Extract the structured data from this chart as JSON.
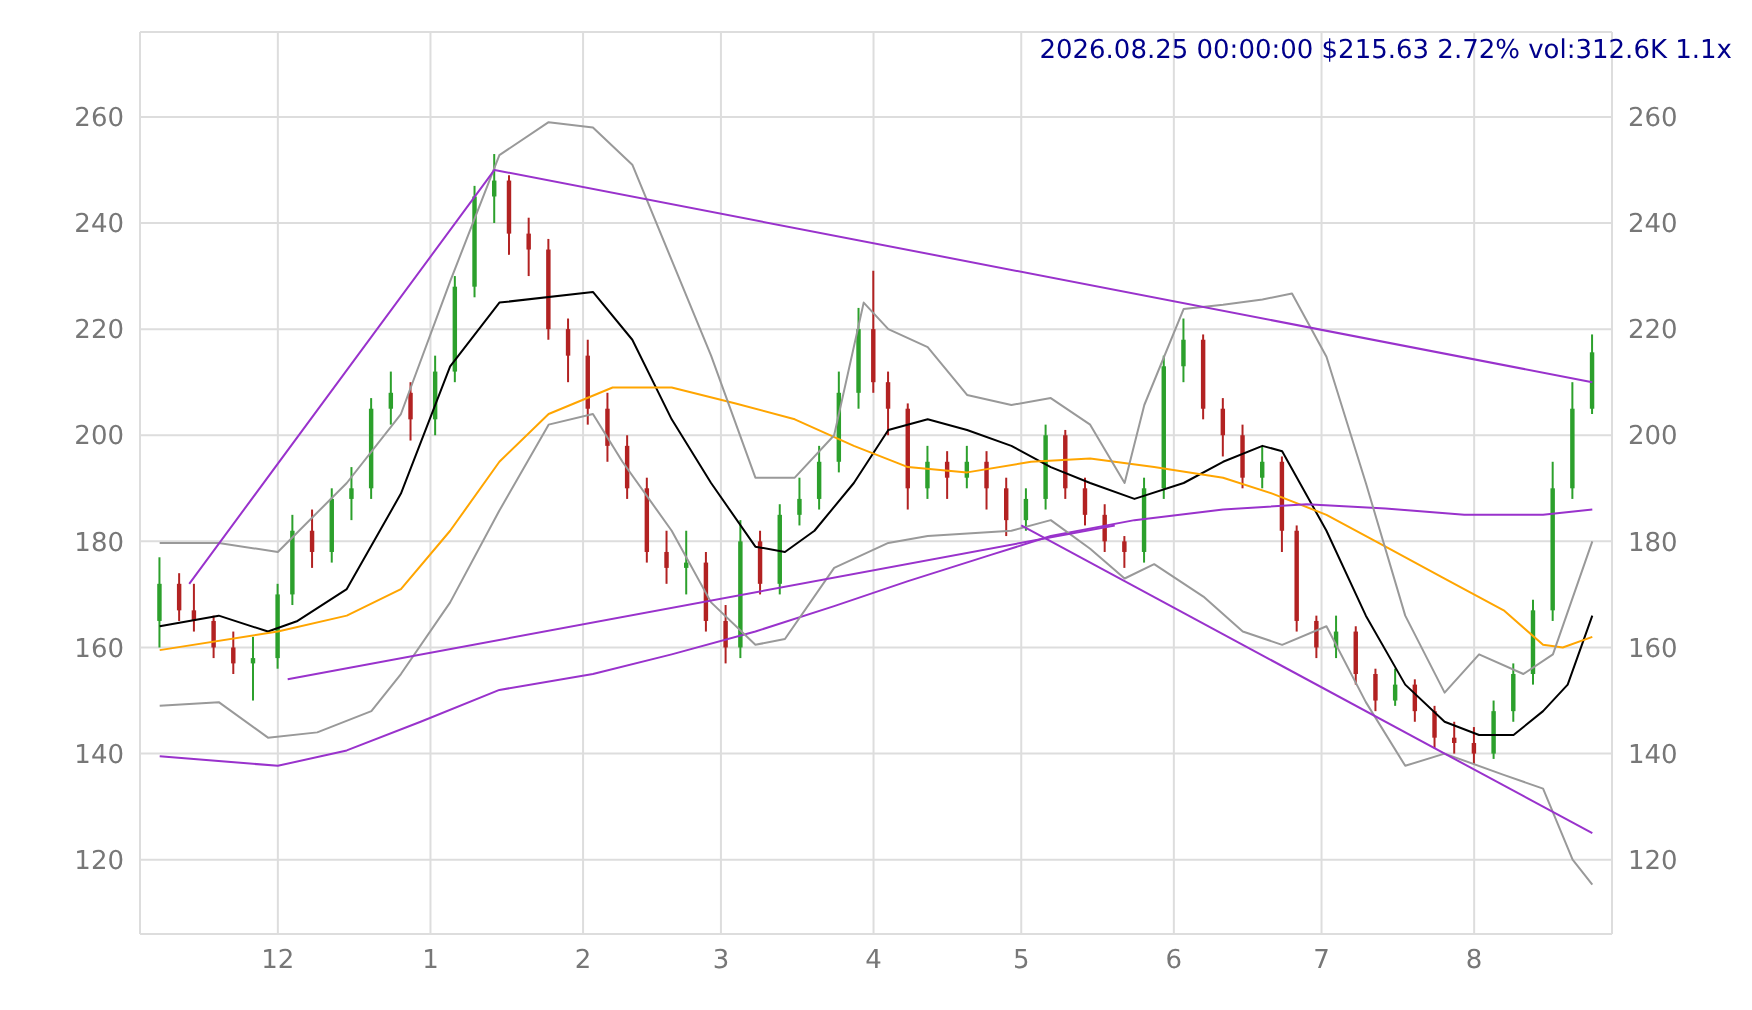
{
  "chart_data": {
    "type": "candlestick",
    "annotations": [
      "2026.08.25 00:00:00 $215.63 2.72% vol:312.6K 1.1x"
    ],
    "x": [
      "2025-11-07",
      "2025-11-11",
      "2025-11-14",
      "2025-11-18",
      "2025-11-22",
      "2025-11-26",
      "2025-12-01",
      "2025-12-04",
      "2025-12-08",
      "2025-12-12",
      "2025-12-16",
      "2025-12-20",
      "2025-12-24",
      "2025-12-28",
      "2026-01-02",
      "2026-01-06",
      "2026-01-10",
      "2026-01-14",
      "2026-01-17",
      "2026-01-21",
      "2026-01-25",
      "2026-01-29",
      "2026-02-02",
      "2026-02-06",
      "2026-02-10",
      "2026-02-14",
      "2026-02-18",
      "2026-02-22",
      "2026-02-26",
      "2026-03-02",
      "2026-03-05",
      "2026-03-09",
      "2026-03-13",
      "2026-03-17",
      "2026-03-21",
      "2026-03-25",
      "2026-03-29",
      "2026-04-01",
      "2026-04-04",
      "2026-04-08",
      "2026-04-12",
      "2026-04-16",
      "2026-04-20",
      "2026-04-24",
      "2026-04-28",
      "2026-05-02",
      "2026-05-06",
      "2026-05-10",
      "2026-05-14",
      "2026-05-18",
      "2026-05-22",
      "2026-05-26",
      "2026-05-30",
      "2026-06-03",
      "2026-06-07",
      "2026-06-11",
      "2026-06-15",
      "2026-06-19",
      "2026-06-23",
      "2026-06-26",
      "2026-06-30",
      "2026-07-04",
      "2026-07-08",
      "2026-07-12",
      "2026-07-16",
      "2026-07-20",
      "2026-07-24",
      "2026-07-28",
      "2026-08-01",
      "2026-08-05",
      "2026-08-09",
      "2026-08-13",
      "2026-08-17",
      "2026-08-21",
      "2026-08-25"
    ],
    "ohlc": [
      [
        165,
        177,
        160,
        172
      ],
      [
        172,
        174,
        165,
        167
      ],
      [
        167,
        172,
        163,
        165
      ],
      [
        165,
        166,
        158,
        160
      ],
      [
        160,
        163,
        155,
        157
      ],
      [
        157,
        162,
        150,
        158
      ],
      [
        158,
        172,
        156,
        170
      ],
      [
        170,
        185,
        168,
        182
      ],
      [
        182,
        186,
        175,
        178
      ],
      [
        178,
        190,
        176,
        188
      ],
      [
        188,
        194,
        184,
        190
      ],
      [
        190,
        207,
        188,
        205
      ],
      [
        205,
        212,
        202,
        208
      ],
      [
        208,
        210,
        199,
        203
      ],
      [
        203,
        215,
        200,
        212
      ],
      [
        212,
        230,
        210,
        228
      ],
      [
        228,
        247,
        226,
        245
      ],
      [
        245,
        253,
        240,
        248
      ],
      [
        248,
        249,
        234,
        238
      ],
      [
        238,
        241,
        230,
        235
      ],
      [
        235,
        237,
        218,
        220
      ],
      [
        220,
        222,
        210,
        215
      ],
      [
        215,
        218,
        202,
        205
      ],
      [
        205,
        208,
        195,
        198
      ],
      [
        198,
        200,
        188,
        190
      ],
      [
        190,
        192,
        176,
        178
      ],
      [
        178,
        182,
        172,
        175
      ],
      [
        175,
        182,
        170,
        176
      ],
      [
        176,
        178,
        163,
        165
      ],
      [
        165,
        168,
        157,
        160
      ],
      [
        160,
        184,
        158,
        180
      ],
      [
        180,
        182,
        170,
        172
      ],
      [
        172,
        187,
        170,
        185
      ],
      [
        185,
        192,
        183,
        188
      ],
      [
        188,
        198,
        186,
        195
      ],
      [
        195,
        212,
        193,
        208
      ],
      [
        208,
        224,
        205,
        220
      ],
      [
        220,
        231,
        208,
        210
      ],
      [
        210,
        212,
        200,
        205
      ],
      [
        205,
        206,
        186,
        190
      ],
      [
        190,
        198,
        188,
        195
      ],
      [
        195,
        197,
        188,
        192
      ],
      [
        192,
        198,
        190,
        195
      ],
      [
        195,
        197,
        186,
        190
      ],
      [
        190,
        192,
        181,
        184
      ],
      [
        184,
        190,
        182,
        188
      ],
      [
        188,
        202,
        186,
        200
      ],
      [
        200,
        201,
        188,
        190
      ],
      [
        190,
        192,
        183,
        185
      ],
      [
        185,
        187,
        178,
        180
      ],
      [
        180,
        181,
        175,
        178
      ],
      [
        178,
        192,
        176,
        190
      ],
      [
        190,
        215,
        188,
        213
      ],
      [
        213,
        222,
        210,
        218
      ],
      [
        218,
        219,
        203,
        205
      ],
      [
        205,
        207,
        196,
        200
      ],
      [
        200,
        202,
        190,
        192
      ],
      [
        192,
        198,
        190,
        195
      ],
      [
        195,
        196,
        178,
        182
      ],
      [
        182,
        183,
        163,
        165
      ],
      [
        165,
        166,
        158,
        160
      ],
      [
        160,
        166,
        158,
        163
      ],
      [
        163,
        164,
        153,
        155
      ],
      [
        155,
        156,
        148,
        150
      ],
      [
        150,
        156,
        149,
        153
      ],
      [
        153,
        154,
        146,
        148
      ],
      [
        148,
        149,
        141,
        143
      ],
      [
        143,
        146,
        140,
        142
      ],
      [
        142,
        145,
        138,
        140
      ],
      [
        140,
        150,
        139,
        148
      ],
      [
        148,
        157,
        146,
        155
      ],
      [
        155,
        169,
        153,
        167
      ],
      [
        167,
        195,
        165,
        190
      ],
      [
        190,
        210,
        188,
        205
      ],
      [
        205,
        219,
        204,
        215.63
      ]
    ],
    "colors": [
      "#2ca02c",
      "#b22222",
      "#b22222",
      "#b22222",
      "#b22222",
      "#2ca02c",
      "#2ca02c",
      "#2ca02c",
      "#b22222",
      "#2ca02c",
      "#2ca02c",
      "#2ca02c",
      "#2ca02c",
      "#b22222",
      "#2ca02c",
      "#2ca02c",
      "#2ca02c",
      "#2ca02c",
      "#b22222",
      "#b22222",
      "#b22222",
      "#b22222",
      "#b22222",
      "#b22222",
      "#b22222",
      "#b22222",
      "#b22222",
      "#2ca02c",
      "#b22222",
      "#b22222",
      "#2ca02c",
      "#b22222",
      "#2ca02c",
      "#2ca02c",
      "#2ca02c",
      "#2ca02c",
      "#2ca02c",
      "#b22222",
      "#b22222",
      "#b22222",
      "#2ca02c",
      "#b22222",
      "#2ca02c",
      "#b22222",
      "#b22222",
      "#2ca02c",
      "#2ca02c",
      "#b22222",
      "#b22222",
      "#b22222",
      "#b22222",
      "#2ca02c",
      "#2ca02c",
      "#2ca02c",
      "#b22222",
      "#b22222",
      "#b22222",
      "#2ca02c",
      "#b22222",
      "#b22222",
      "#b22222",
      "#2ca02c",
      "#b22222",
      "#b22222",
      "#2ca02c",
      "#b22222",
      "#b22222",
      "#b22222",
      "#b22222",
      "#2ca02c",
      "#2ca02c",
      "#2ca02c",
      "#2ca02c",
      "#2ca02c",
      "#2ca02c"
    ],
    "series": [
      {
        "type": "line",
        "color": "#000000",
        "x": [
          "2025-11-07",
          "2025-11-19",
          "2025-11-29",
          "2025-12-05",
          "2025-12-15",
          "2025-12-26",
          "2026-01-05",
          "2026-01-15",
          "2026-02-03",
          "2026-02-11",
          "2026-02-19",
          "2026-02-27",
          "2026-03-08",
          "2026-03-14",
          "2026-03-20",
          "2026-03-28",
          "2026-04-04",
          "2026-04-12",
          "2026-04-20",
          "2026-04-29",
          "2026-05-07",
          "2026-05-15",
          "2026-05-24",
          "2026-06-03",
          "2026-06-11",
          "2026-06-19",
          "2026-06-23",
          "2026-07-02",
          "2026-07-10",
          "2026-07-18",
          "2026-07-26",
          "2026-08-02",
          "2026-08-09",
          "2026-08-15",
          "2026-08-20",
          "2026-08-25"
        ],
        "values": [
          164,
          166,
          163,
          165,
          171,
          189,
          213,
          225,
          227,
          218,
          203,
          191,
          179,
          178,
          182,
          191,
          201,
          203,
          201,
          198,
          194,
          191,
          188,
          191,
          195,
          198,
          197,
          182,
          166,
          153,
          146,
          143.5,
          143.5,
          148,
          153,
          166
        ]
      },
      {
        "type": "line",
        "color": "#ffa500",
        "x": [
          "2025-11-07",
          "2025-12-01",
          "2025-12-15",
          "2025-12-26",
          "2026-01-05",
          "2026-01-15",
          "2026-01-25",
          "2026-02-07",
          "2026-02-19",
          "2026-03-04",
          "2026-03-16",
          "2026-03-28",
          "2026-04-08",
          "2026-04-20",
          "2026-05-03",
          "2026-05-15",
          "2026-05-28",
          "2026-06-11",
          "2026-06-21",
          "2026-07-02",
          "2026-07-14",
          "2026-07-26",
          "2026-08-07",
          "2026-08-15",
          "2026-08-19",
          "2026-08-25"
        ],
        "values": [
          159.5,
          163,
          166,
          171,
          182,
          195,
          204,
          209,
          209,
          206,
          203,
          198,
          194,
          193,
          195,
          195.6,
          194,
          192,
          189,
          185,
          179,
          173,
          167,
          160.5,
          160,
          162
        ]
      },
      {
        "type": "line",
        "color": "#9932cc",
        "x": [
          "2025-11-07",
          "2025-12-01",
          "2025-12-15",
          "2025-12-30",
          "2026-01-15",
          "2026-02-03",
          "2026-02-19",
          "2026-03-08",
          "2026-03-24",
          "2026-04-08",
          "2026-04-25",
          "2026-05-07",
          "2026-05-24",
          "2026-06-11",
          "2026-06-28",
          "2026-07-14",
          "2026-07-30",
          "2026-08-15",
          "2026-08-25"
        ],
        "values": [
          139.5,
          137.7,
          140.6,
          146,
          152,
          155,
          158.7,
          163,
          167.8,
          172.5,
          177.5,
          181,
          184,
          186,
          187,
          186.2,
          185,
          185,
          186
        ]
      },
      {
        "type": "line",
        "color": "#999999",
        "x": [
          "2025-11-07",
          "2025-11-19",
          "2025-12-01",
          "2025-12-15",
          "2025-12-26",
          "2026-01-05",
          "2026-01-15",
          "2026-01-25",
          "2026-02-03",
          "2026-02-11",
          "2026-02-19",
          "2026-02-27",
          "2026-03-08",
          "2026-03-16",
          "2026-03-24",
          "2026-03-30",
          "2026-04-04",
          "2026-04-12",
          "2026-04-20",
          "2026-04-29",
          "2026-05-07",
          "2026-05-15",
          "2026-05-22",
          "2026-05-26",
          "2026-06-03",
          "2026-06-11",
          "2026-06-19",
          "2026-06-25",
          "2026-07-02",
          "2026-07-10",
          "2026-07-18",
          "2026-07-26",
          "2026-08-02",
          "2026-08-11",
          "2026-08-17",
          "2026-08-25"
        ],
        "values": [
          179.7,
          179.7,
          178,
          191,
          204,
          229,
          252.8,
          259,
          258,
          251,
          233,
          215,
          192,
          192,
          200,
          225,
          220,
          216.6,
          207.6,
          205.7,
          207,
          202,
          191,
          205.7,
          223.8,
          224.6,
          225.6,
          226.7,
          214.8,
          191,
          166,
          151.5,
          158.7,
          155,
          158.7,
          180
        ]
      },
      {
        "type": "line",
        "color": "#999999",
        "x": [
          "2025-11-07",
          "2025-11-19",
          "2025-11-29",
          "2025-12-09",
          "2025-12-20",
          "2025-12-26",
          "2026-01-05",
          "2026-01-15",
          "2026-01-25",
          "2026-02-03",
          "2026-02-09",
          "2026-02-19",
          "2026-02-27",
          "2026-03-08",
          "2026-03-14",
          "2026-03-24",
          "2026-04-04",
          "2026-04-12",
          "2026-04-29",
          "2026-05-07",
          "2026-05-15",
          "2026-05-22",
          "2026-05-28",
          "2026-06-07",
          "2026-06-15",
          "2026-06-23",
          "2026-07-02",
          "2026-07-10",
          "2026-07-18",
          "2026-07-26",
          "2026-08-07",
          "2026-08-15",
          "2026-08-21",
          "2026-08-25"
        ],
        "values": [
          149,
          149.7,
          143,
          144,
          148,
          155,
          168.5,
          185.8,
          202,
          204,
          195,
          182,
          168.5,
          160.5,
          161.6,
          175,
          179.7,
          181,
          182,
          184,
          178.6,
          173,
          175.7,
          169.6,
          163,
          160.5,
          164,
          149.7,
          137.7,
          140,
          136,
          133.4,
          120,
          115.3
        ]
      },
      {
        "type": "line",
        "color": "#9932cc",
        "x": [
          "2025-11-13",
          "2026-01-14",
          "2026-08-25"
        ],
        "values": [
          172,
          250,
          210
        ]
      },
      {
        "type": "line",
        "color": "#9932cc",
        "x": [
          "2025-12-03",
          "2026-05-20"
        ],
        "values": [
          154,
          183
        ]
      },
      {
        "type": "line",
        "color": "#9932cc",
        "x": [
          "2026-05-01",
          "2026-08-25"
        ],
        "values": [
          183,
          125
        ]
      }
    ],
    "xlim": [
      "2025-11-03",
      "2026-08-29"
    ],
    "xticks": [
      {
        "value": "2025-12-01",
        "label": "12"
      },
      {
        "value": "2026-01-01",
        "label": "1"
      },
      {
        "value": "2026-02-01",
        "label": "2"
      },
      {
        "value": "2026-03-01",
        "label": "3"
      },
      {
        "value": "2026-04-01",
        "label": "4"
      },
      {
        "value": "2026-05-01",
        "label": "5"
      },
      {
        "value": "2026-06-01",
        "label": "6"
      },
      {
        "value": "2026-07-01",
        "label": "7"
      },
      {
        "value": "2026-08-01",
        "label": "8"
      }
    ],
    "ylim": [
      106,
      276
    ],
    "yticks": [
      120,
      140,
      160,
      180,
      200,
      220,
      240,
      260
    ],
    "y2lim": [
      106,
      276
    ],
    "y2ticks": [
      120,
      140,
      160,
      180,
      200,
      220,
      240,
      260
    ],
    "grid": true,
    "marker": "none",
    "line_style": "solid"
  }
}
